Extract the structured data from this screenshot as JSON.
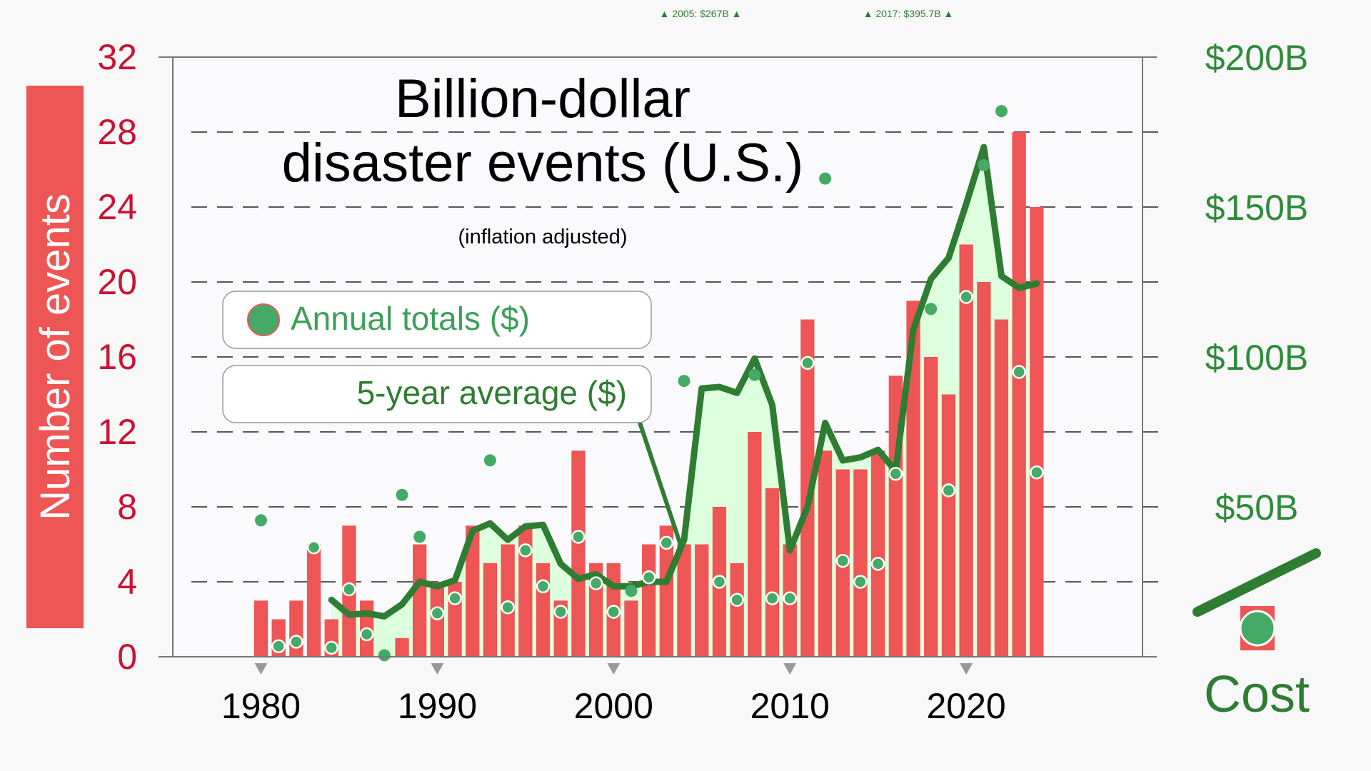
{
  "chart_data": {
    "type": "bar",
    "title_line1": "Billion-dollar",
    "title_line2": "disaster events (U.S.)",
    "subtitle": "(inflation adjusted)",
    "ylabel": "Number of events",
    "y2label": "Cost",
    "ylim": [
      0,
      32
    ],
    "y2lim": [
      0,
      200
    ],
    "y2_unit": "billion USD",
    "xlim": [
      1975,
      2030
    ],
    "yticks": [
      "0",
      "4",
      "8",
      "12",
      "16",
      "20",
      "24",
      "28",
      "32"
    ],
    "y2ticks": [
      "$50B",
      "$100B",
      "$150B",
      "$200B"
    ],
    "y2tick_values": [
      50,
      100,
      150,
      200
    ],
    "xticks": [
      "1980",
      "1990",
      "2000",
      "2010",
      "2020"
    ],
    "xtick_values": [
      1980,
      1990,
      2000,
      2010,
      2020
    ],
    "grid": "horizontal dashed",
    "legend": {
      "annual": "Annual totals ($)",
      "avg": "5-year average ($)"
    },
    "offscale_notes": [
      "▲ 2005: $267B ▲",
      "▲ 2017: $395.7B ▲"
    ],
    "colors": {
      "bars": "#ee5555",
      "dots": "#44aa66",
      "avg_line": "#2e7d32",
      "avg_fill": "#ddffdd",
      "left_axis": "#cc1133",
      "right_axis": "#2e8b3a",
      "ylabel_box": "#ee5555"
    },
    "years": [
      1980,
      1981,
      1982,
      1983,
      1984,
      1985,
      1986,
      1987,
      1988,
      1989,
      1990,
      1991,
      1992,
      1993,
      1994,
      1995,
      1996,
      1997,
      1998,
      1999,
      2000,
      2001,
      2002,
      2003,
      2004,
      2005,
      2006,
      2007,
      2008,
      2009,
      2010,
      2011,
      2012,
      2013,
      2014,
      2015,
      2016,
      2017,
      2018,
      2019,
      2020,
      2021,
      2022,
      2023,
      2024
    ],
    "events": [
      3,
      2,
      3,
      6,
      2,
      7,
      3,
      0,
      1,
      6,
      4,
      4,
      7,
      5,
      6,
      7,
      5,
      3,
      11,
      5,
      5,
      3,
      6,
      7,
      6,
      6,
      8,
      5,
      12,
      9,
      6,
      18,
      11,
      10,
      10,
      11,
      15,
      19,
      16,
      14,
      22,
      20,
      18,
      28,
      24
    ],
    "annual_cost": [
      45.5,
      3.5,
      5,
      36.5,
      3,
      22.5,
      7.5,
      0.5,
      54,
      40,
      14.5,
      19.5,
      80,
      65.5,
      16.5,
      35.5,
      23.5,
      15,
      40,
      24.5,
      15,
      22,
      26.5,
      38,
      92,
      267,
      25,
      19,
      94,
      19.5,
      19.5,
      98,
      159.5,
      32,
      25,
      31,
      61,
      395.7,
      116,
      55.5,
      120,
      164,
      182,
      95,
      61.5
    ],
    "avg_years": [
      1984,
      1985,
      1986,
      1987,
      1988,
      1989,
      1990,
      1991,
      1992,
      1993,
      1994,
      1995,
      1996,
      1997,
      1998,
      1999,
      2000,
      2001,
      2002,
      2003,
      2004,
      2005,
      2006,
      2007,
      2008,
      2009,
      2010,
      2011,
      2012,
      2013,
      2014,
      2015,
      2016,
      2017,
      2018,
      2019,
      2020,
      2021,
      2022,
      2023,
      2024
    ],
    "five_year_avg": [
      19,
      14,
      14.5,
      13.5,
      17.5,
      25,
      23.5,
      25.5,
      42,
      44.5,
      39,
      43.5,
      44,
      31,
      26,
      27.5,
      23.5,
      23.5,
      25,
      25,
      39,
      89.5,
      90,
      88,
      99.5,
      84,
      35.5,
      50,
      78,
      65.5,
      66.5,
      69,
      62,
      109,
      126,
      133,
      151,
      170,
      127,
      123,
      124.5
    ]
  }
}
